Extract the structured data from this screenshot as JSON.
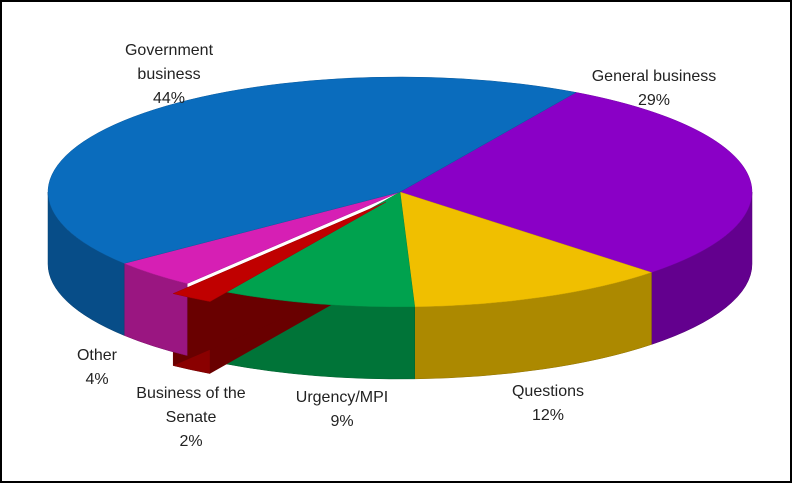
{
  "chart_data": {
    "type": "pie",
    "categories": [
      "General business",
      "Questions",
      "Urgency/MPI",
      "Business of the Senate",
      "Other",
      "Government business"
    ],
    "values": [
      29,
      12,
      9,
      2,
      4,
      44
    ],
    "value_labels": [
      "29%",
      "12%",
      "9%",
      "2%",
      "4%",
      "44%"
    ],
    "colors": [
      "#8a00c6",
      "#f0bf00",
      "#00a24e",
      "#c00000",
      "#d61fb4",
      "#0a6cbd"
    ]
  }
}
